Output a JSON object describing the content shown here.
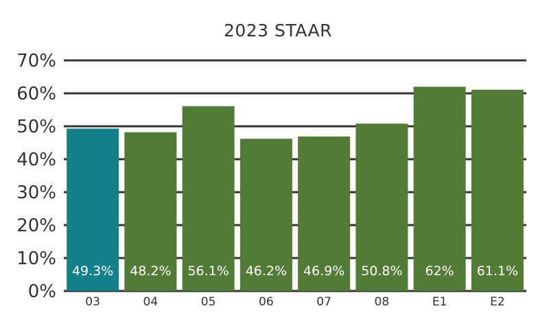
{
  "chart_data": {
    "type": "bar",
    "title": "2023 STAAR",
    "categories": [
      "03",
      "04",
      "05",
      "06",
      "07",
      "08",
      "E1",
      "E2"
    ],
    "values": [
      49.3,
      48.2,
      56.1,
      46.2,
      46.9,
      50.8,
      62,
      61.1
    ],
    "data_labels": [
      "49.3%",
      "48.2%",
      "56.1%",
      "46.2%",
      "46.9%",
      "50.8%",
      "62%",
      "61.1%"
    ],
    "ylim": [
      0,
      70
    ],
    "yticks": [
      0,
      10,
      20,
      30,
      40,
      50,
      60,
      70
    ],
    "ytick_labels": [
      "0%",
      "10%",
      "20%",
      "30%",
      "40%",
      "50%",
      "60%",
      "70%"
    ],
    "xlabel": "",
    "ylabel": "",
    "grid": true,
    "legend": "none",
    "colors": {
      "highlight": "#148089",
      "bar": "#527b36",
      "grid": "#333333",
      "label": "#ffffff"
    },
    "highlight_index": 0
  }
}
